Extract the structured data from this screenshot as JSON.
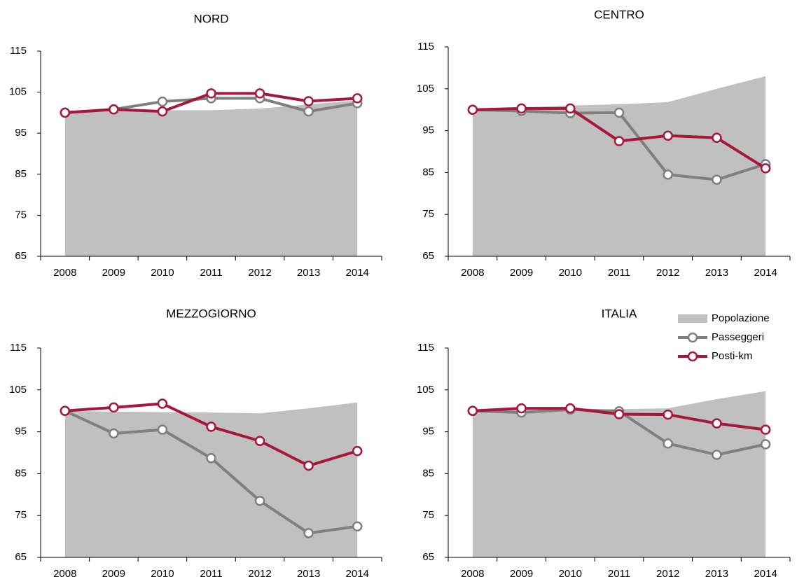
{
  "chart_data": [
    {
      "type": "line",
      "title": "NORD",
      "categories": [
        "2008",
        "2009",
        "2010",
        "2011",
        "2012",
        "2013",
        "2014"
      ],
      "ylim": [
        65,
        115
      ],
      "yticks": [
        65,
        75,
        85,
        95,
        105,
        115
      ],
      "series": [
        {
          "type": "area",
          "color": "#c0c0c0",
          "values": [
            100,
            100.5,
            100.6,
            100.6,
            101,
            102,
            103
          ]
        },
        {
          "type": "line",
          "color": "#7f7f7f",
          "values": [
            100,
            100.8,
            102.7,
            103.5,
            103.5,
            100.3,
            102.3
          ]
        },
        {
          "type": "line",
          "color": "#a6173d",
          "values": [
            100,
            100.8,
            100.3,
            104.7,
            104.7,
            102.8,
            103.5
          ]
        }
      ]
    },
    {
      "type": "line",
      "title": "CENTRO",
      "categories": [
        "2008",
        "2009",
        "2010",
        "2011",
        "2012",
        "2013",
        "2014"
      ],
      "ylim": [
        65,
        115
      ],
      "yticks": [
        65,
        75,
        85,
        95,
        105,
        115
      ],
      "series": [
        {
          "type": "area",
          "color": "#c0c0c0",
          "values": [
            100,
            100.5,
            101,
            101.3,
            101.8,
            105,
            108
          ]
        },
        {
          "type": "line",
          "color": "#7f7f7f",
          "values": [
            100,
            99.7,
            99.2,
            99.3,
            84.5,
            83.3,
            87
          ]
        },
        {
          "type": "line",
          "color": "#a6173d",
          "values": [
            100,
            100.3,
            100.3,
            92.5,
            93.8,
            93.3,
            86
          ]
        }
      ]
    },
    {
      "type": "line",
      "title": "MEZZOGIORNO",
      "categories": [
        "2008",
        "2009",
        "2010",
        "2011",
        "2012",
        "2013",
        "2014"
      ],
      "ylim": [
        65,
        115
      ],
      "yticks": [
        65,
        75,
        85,
        95,
        105,
        115
      ],
      "series": [
        {
          "type": "area",
          "color": "#c0c0c0",
          "values": [
            100,
            99.8,
            99.7,
            99.6,
            99.4,
            100.6,
            102
          ]
        },
        {
          "type": "line",
          "color": "#7f7f7f",
          "values": [
            100,
            94.6,
            95.5,
            88.7,
            78.5,
            70.8,
            72.4
          ]
        },
        {
          "type": "line",
          "color": "#a6173d",
          "values": [
            100,
            100.8,
            101.7,
            96.2,
            92.8,
            86.9,
            90.4
          ]
        }
      ]
    },
    {
      "type": "line",
      "title": "ITALIA",
      "categories": [
        "2008",
        "2009",
        "2010",
        "2011",
        "2012",
        "2013",
        "2014"
      ],
      "ylim": [
        65,
        115
      ],
      "yticks": [
        65,
        75,
        85,
        95,
        105,
        115
      ],
      "series": [
        {
          "name": "Popolazione",
          "type": "area",
          "color": "#c0c0c0",
          "values": [
            100,
            100.2,
            100.3,
            100.4,
            100.6,
            102.8,
            104.7
          ]
        },
        {
          "name": "Passeggeri",
          "type": "line",
          "color": "#7f7f7f",
          "values": [
            100,
            99.6,
            100.3,
            99.9,
            92.2,
            89.5,
            92
          ]
        },
        {
          "name": "Posti-km",
          "type": "line",
          "color": "#a6173d",
          "values": [
            100,
            100.6,
            100.6,
            99.2,
            99.1,
            97,
            95.5
          ]
        }
      ]
    }
  ]
}
